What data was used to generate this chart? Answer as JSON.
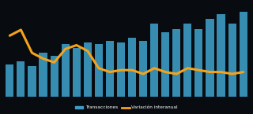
{
  "bar_values": [
    22,
    24,
    21,
    30,
    28,
    36,
    33,
    37,
    36,
    38,
    37,
    40,
    38,
    50,
    44,
    46,
    50,
    46,
    53,
    56,
    50,
    58
  ],
  "line_values": [
    27,
    30,
    18,
    15,
    13,
    20,
    22,
    19,
    10,
    8,
    9,
    9,
    7,
    10,
    8,
    7,
    10,
    9,
    8,
    8,
    7,
    8
  ],
  "bar_color": "#3d9bc5",
  "line_color": "#f5a31a",
  "background_color": "#080c10",
  "legend_bar_label": "Transacciones",
  "legend_line_label": "Variación interanual",
  "ylim_bar": [
    0,
    65
  ],
  "ylim_line": [
    -5,
    45
  ]
}
